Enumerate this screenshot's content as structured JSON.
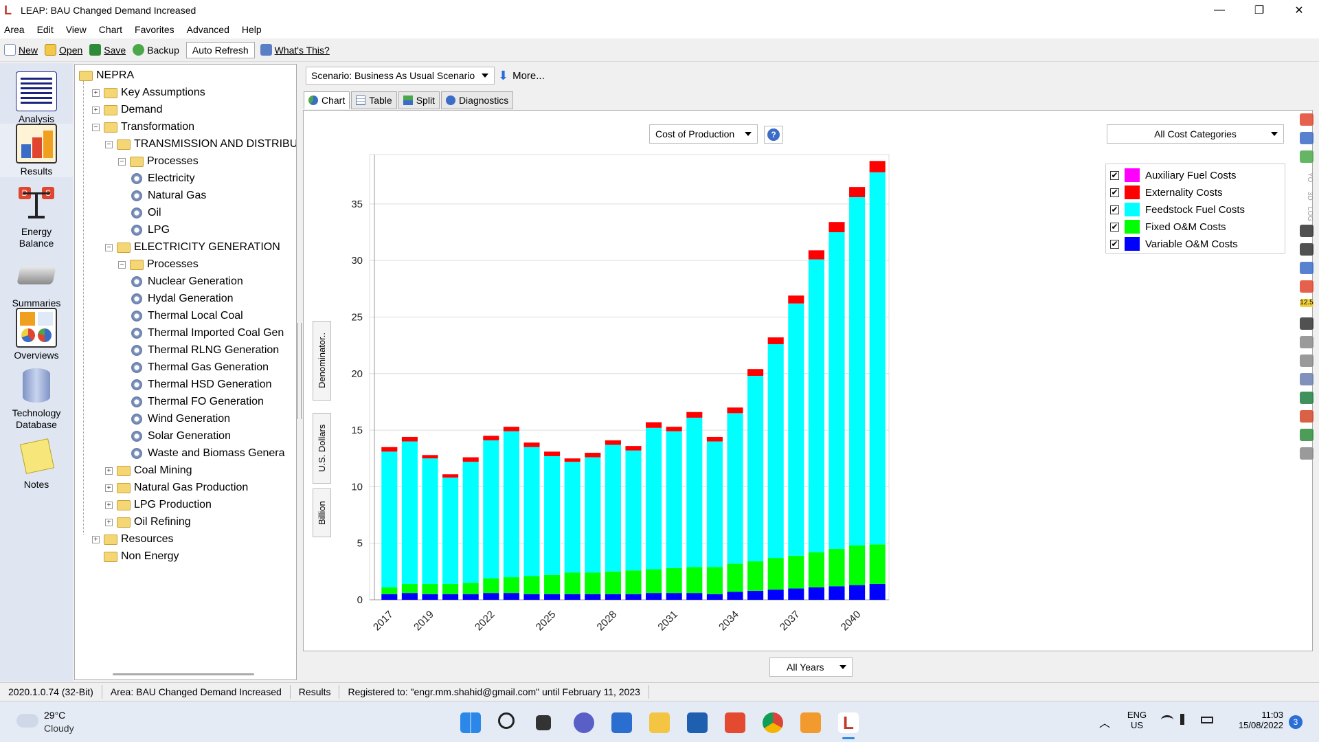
{
  "window": {
    "title": "LEAP: BAU Changed Demand Increased",
    "min": "—",
    "max": "❐",
    "close": "✕"
  },
  "menu": [
    "Area",
    "Edit",
    "View",
    "Chart",
    "Favorites",
    "Advanced",
    "Help"
  ],
  "toolbar": {
    "new": "New",
    "open": "Open",
    "save": "Save",
    "backup": "Backup",
    "auto_refresh": "Auto Refresh",
    "whats_this": "What's This?"
  },
  "nav": [
    {
      "label": "Analysis",
      "icon": "analysis-icon"
    },
    {
      "label": "Results",
      "icon": "results-icon"
    },
    {
      "label": "Energy\nBalance",
      "icon": "energy-balance-icon"
    },
    {
      "label": "Summaries",
      "icon": "summaries-icon"
    },
    {
      "label": "Overviews",
      "icon": "overviews-icon"
    },
    {
      "label": "Technology\nDatabase",
      "icon": "technology-database-icon"
    },
    {
      "label": "Notes",
      "icon": "notes-icon"
    }
  ],
  "tree": [
    {
      "label": "NEPRA",
      "level": 0,
      "type": "folder",
      "exp": ""
    },
    {
      "label": "Key Assumptions",
      "level": 1,
      "type": "folder",
      "exp": "+"
    },
    {
      "label": "Demand",
      "level": 1,
      "type": "folder",
      "exp": "+"
    },
    {
      "label": "Transformation",
      "level": 1,
      "type": "folder",
      "exp": "−"
    },
    {
      "label": "TRANSMISSION AND DISTRIBUTIO",
      "level": 2,
      "type": "folder",
      "exp": "−"
    },
    {
      "label": "Processes",
      "level": 3,
      "type": "folder",
      "exp": "−"
    },
    {
      "label": "Electricity",
      "level": 4,
      "type": "gear",
      "exp": ""
    },
    {
      "label": "Natural Gas",
      "level": 4,
      "type": "gear",
      "exp": ""
    },
    {
      "label": "Oil",
      "level": 4,
      "type": "gear",
      "exp": ""
    },
    {
      "label": "LPG",
      "level": 4,
      "type": "gear",
      "exp": ""
    },
    {
      "label": "ELECTRICITY GENERATION",
      "level": 2,
      "type": "folder",
      "exp": "−"
    },
    {
      "label": "Processes",
      "level": 3,
      "type": "folder",
      "exp": "−"
    },
    {
      "label": "Nuclear Generation",
      "level": 4,
      "type": "gear",
      "exp": ""
    },
    {
      "label": "Hydal  Generation",
      "level": 4,
      "type": "gear",
      "exp": ""
    },
    {
      "label": "Thermal Local Coal",
      "level": 4,
      "type": "gear",
      "exp": ""
    },
    {
      "label": "Thermal Imported Coal Gen",
      "level": 4,
      "type": "gear",
      "exp": ""
    },
    {
      "label": "Thermal RLNG Generation",
      "level": 4,
      "type": "gear",
      "exp": ""
    },
    {
      "label": "Thermal Gas Generation",
      "level": 4,
      "type": "gear",
      "exp": ""
    },
    {
      "label": "Thermal HSD Generation",
      "level": 4,
      "type": "gear",
      "exp": ""
    },
    {
      "label": "Thermal FO Generation",
      "level": 4,
      "type": "gear",
      "exp": ""
    },
    {
      "label": "Wind Generation",
      "level": 4,
      "type": "gear",
      "exp": ""
    },
    {
      "label": "Solar Generation",
      "level": 4,
      "type": "gear",
      "exp": ""
    },
    {
      "label": "Waste and Biomass Genera",
      "level": 4,
      "type": "gear",
      "exp": ""
    },
    {
      "label": "Coal Mining",
      "level": 2,
      "type": "folder",
      "exp": "+"
    },
    {
      "label": "Natural Gas Production",
      "level": 2,
      "type": "folder",
      "exp": "+"
    },
    {
      "label": "LPG Production",
      "level": 2,
      "type": "folder",
      "exp": "+"
    },
    {
      "label": "Oil Refining",
      "level": 2,
      "type": "folder",
      "exp": "+"
    },
    {
      "label": "Resources",
      "level": 1,
      "type": "folder",
      "exp": "+"
    },
    {
      "label": "Non Energy",
      "level": 1,
      "type": "folder",
      "exp": ""
    }
  ],
  "scenario": {
    "label": "Scenario: Business As Usual Scenario",
    "more": "More..."
  },
  "tabs": [
    "Chart",
    "Table",
    "Split",
    "Diagnostics"
  ],
  "measure": "Cost of Production",
  "cost_categories": "All Cost Categories",
  "y_labels": [
    "Denominator..",
    "U.S. Dollars",
    "Billion"
  ],
  "all_years": "All Years",
  "chart_data": {
    "type": "bar",
    "stacked": true,
    "years": [
      2017,
      2018,
      2019,
      2020,
      2021,
      2022,
      2023,
      2024,
      2025,
      2026,
      2027,
      2028,
      2029,
      2030,
      2031,
      2032,
      2033,
      2034,
      2035,
      2036,
      2037,
      2038,
      2039,
      2040,
      2041
    ],
    "x_tick_labels": [
      "2017",
      "2019",
      "2022",
      "2025",
      "2028",
      "2031",
      "2034",
      "2037",
      "2040"
    ],
    "x_tick_years": [
      2017,
      2019,
      2022,
      2025,
      2028,
      2031,
      2034,
      2037,
      2040
    ],
    "ylim": [
      0,
      39
    ],
    "y_ticks": [
      0,
      5,
      10,
      15,
      20,
      25,
      30,
      35
    ],
    "grid": true,
    "legend_position": "right",
    "series": [
      {
        "name": "Variable O&M Costs",
        "color": "#0000ff",
        "values": [
          0.5,
          0.6,
          0.5,
          0.5,
          0.5,
          0.6,
          0.6,
          0.5,
          0.5,
          0.5,
          0.5,
          0.5,
          0.5,
          0.6,
          0.6,
          0.6,
          0.5,
          0.7,
          0.8,
          0.9,
          1.0,
          1.1,
          1.2,
          1.3,
          1.4
        ]
      },
      {
        "name": "Fixed O&M Costs",
        "color": "#00ff00",
        "values": [
          0.6,
          0.8,
          0.9,
          0.9,
          1.0,
          1.3,
          1.4,
          1.6,
          1.7,
          1.9,
          1.9,
          2.0,
          2.1,
          2.1,
          2.2,
          2.3,
          2.4,
          2.5,
          2.6,
          2.8,
          2.9,
          3.1,
          3.3,
          3.5,
          3.5
        ]
      },
      {
        "name": "Feedstock Fuel Costs",
        "color": "#00ffff",
        "values": [
          12.0,
          12.6,
          11.1,
          9.4,
          10.7,
          12.2,
          12.9,
          11.4,
          10.5,
          9.8,
          10.2,
          11.2,
          10.6,
          12.5,
          12.1,
          13.2,
          11.1,
          13.3,
          16.4,
          18.9,
          22.3,
          25.9,
          28.0,
          30.8,
          32.9
        ]
      },
      {
        "name": "Externality Costs",
        "color": "#ff0000",
        "values": [
          0.4,
          0.4,
          0.3,
          0.3,
          0.4,
          0.4,
          0.4,
          0.4,
          0.4,
          0.3,
          0.4,
          0.4,
          0.4,
          0.5,
          0.4,
          0.5,
          0.4,
          0.5,
          0.6,
          0.6,
          0.7,
          0.8,
          0.9,
          0.9,
          1.0
        ]
      },
      {
        "name": "Auxiliary Fuel Costs",
        "color": "#ff00ff",
        "values": [
          0,
          0,
          0,
          0,
          0,
          0,
          0,
          0,
          0,
          0,
          0,
          0,
          0,
          0,
          0,
          0,
          0,
          0,
          0,
          0,
          0,
          0,
          0,
          0,
          0
        ]
      }
    ]
  },
  "legend": [
    {
      "name": "Auxiliary  Fuel  Costs",
      "color": "#ff00ff",
      "checked": "✔"
    },
    {
      "name": "Externality  Costs",
      "color": "#ff0000",
      "checked": "✔"
    },
    {
      "name": "Feedstock  Fuel  Costs",
      "color": "#00ffff",
      "checked": "✔"
    },
    {
      "name": "Fixed  O&M  Costs",
      "color": "#00ff00",
      "checked": "✔"
    },
    {
      "name": "Variable  O&M  Costs",
      "color": "#0000ff",
      "checked": "✔"
    }
  ],
  "right_toolbar": [
    "pie-chart-icon",
    "bar-chart-icon",
    "globe-icon",
    "yo-label",
    "3d-label",
    "log-label",
    "font-increase-icon",
    "font-decrease-icon",
    "stack-icon",
    "grid-icon",
    "number-format-icon",
    "rotate-icon",
    "print-preview-icon",
    "print-icon",
    "copy-icon",
    "excel-icon",
    "powerpoint-icon",
    "save-icon",
    "wrench-icon"
  ],
  "right_toolbar_text": {
    "yo": "YO",
    "3d": "3D",
    "log": "LOG",
    "num": "12.5"
  },
  "status": {
    "version": "2020.1.0.74 (32-Bit)",
    "area": "Area: BAU Changed Demand Increased",
    "view": "Results",
    "registered": "Registered to: \"engr.mm.shahid@gmail.com\" until February 11, 2023"
  },
  "taskbar": {
    "temp": "29°C",
    "weather": "Cloudy",
    "lang1": "ENG",
    "lang2": "US",
    "time": "11:03",
    "date": "15/08/2022",
    "badge": "3"
  }
}
